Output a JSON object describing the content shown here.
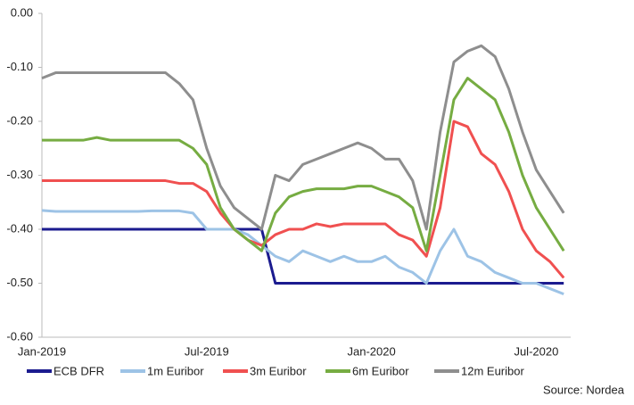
{
  "chart_data": {
    "type": "line",
    "x": [
      "Jan-2019",
      null,
      null,
      null,
      null,
      null,
      null,
      null,
      null,
      null,
      null,
      null,
      "Jul-2019",
      null,
      null,
      null,
      null,
      null,
      null,
      null,
      null,
      null,
      null,
      null,
      "Jan-2020",
      null,
      null,
      null,
      null,
      null,
      null,
      null,
      null,
      null,
      null,
      null,
      "Jul-2020",
      null,
      null
    ],
    "ylim": [
      -0.6,
      0
    ],
    "yticks": [
      {
        "value": 0,
        "label": "0.00"
      },
      {
        "value": -0.1,
        "label": "-0.10"
      },
      {
        "value": -0.2,
        "label": "-0.20"
      },
      {
        "value": -0.3,
        "label": "-0.30"
      },
      {
        "value": -0.4,
        "label": "-0.40"
      },
      {
        "value": -0.5,
        "label": "-0.50"
      },
      {
        "value": -0.6,
        "label": "-0.60"
      }
    ],
    "grid": false,
    "legend": "bottom",
    "source": "Source: Nordea",
    "series": [
      {
        "name": "ECB DFR",
        "color": "#1b1b8f",
        "values": [
          -0.4,
          -0.4,
          -0.4,
          -0.4,
          -0.4,
          -0.4,
          -0.4,
          -0.4,
          -0.4,
          -0.4,
          -0.4,
          -0.4,
          -0.4,
          -0.4,
          -0.4,
          -0.4,
          -0.4,
          -0.5,
          -0.5,
          -0.5,
          -0.5,
          -0.5,
          -0.5,
          -0.5,
          -0.5,
          -0.5,
          -0.5,
          -0.5,
          -0.5,
          -0.5,
          -0.5,
          -0.5,
          -0.5,
          -0.5,
          -0.5,
          -0.5,
          -0.5,
          -0.5,
          -0.5
        ]
      },
      {
        "name": "1m Euribor",
        "color": "#9dc3e6",
        "values": [
          -0.365,
          -0.367,
          -0.367,
          -0.367,
          -0.367,
          -0.367,
          -0.367,
          -0.367,
          -0.366,
          -0.366,
          -0.366,
          -0.37,
          -0.4,
          -0.4,
          -0.4,
          -0.41,
          -0.43,
          -0.45,
          -0.46,
          -0.44,
          -0.45,
          -0.46,
          -0.45,
          -0.46,
          -0.46,
          -0.45,
          -0.47,
          -0.48,
          -0.5,
          -0.44,
          -0.4,
          -0.45,
          -0.46,
          -0.48,
          -0.49,
          -0.5,
          -0.5,
          -0.51,
          -0.52
        ]
      },
      {
        "name": "3m Euribor",
        "color": "#f05050",
        "values": [
          -0.31,
          -0.31,
          -0.31,
          -0.31,
          -0.31,
          -0.31,
          -0.31,
          -0.31,
          -0.31,
          -0.31,
          -0.315,
          -0.315,
          -0.33,
          -0.37,
          -0.4,
          -0.42,
          -0.43,
          -0.41,
          -0.4,
          -0.4,
          -0.39,
          -0.395,
          -0.39,
          -0.39,
          -0.39,
          -0.39,
          -0.41,
          -0.42,
          -0.45,
          -0.36,
          -0.2,
          -0.21,
          -0.26,
          -0.28,
          -0.33,
          -0.4,
          -0.44,
          -0.46,
          -0.49
        ]
      },
      {
        "name": "6m Euribor",
        "color": "#76ac42",
        "values": [
          -0.235,
          -0.235,
          -0.235,
          -0.235,
          -0.23,
          -0.235,
          -0.235,
          -0.235,
          -0.235,
          -0.235,
          -0.235,
          -0.25,
          -0.28,
          -0.36,
          -0.4,
          -0.42,
          -0.44,
          -0.37,
          -0.34,
          -0.33,
          -0.325,
          -0.325,
          -0.325,
          -0.32,
          -0.32,
          -0.33,
          -0.34,
          -0.36,
          -0.44,
          -0.3,
          -0.16,
          -0.12,
          -0.14,
          -0.16,
          -0.22,
          -0.3,
          -0.36,
          -0.4,
          -0.44
        ]
      },
      {
        "name": "12m Euribor",
        "color": "#8e8e8e",
        "values": [
          -0.12,
          -0.11,
          -0.11,
          -0.11,
          -0.11,
          -0.11,
          -0.11,
          -0.11,
          -0.11,
          -0.11,
          -0.13,
          -0.16,
          -0.25,
          -0.32,
          -0.36,
          -0.38,
          -0.4,
          -0.3,
          -0.31,
          -0.28,
          -0.27,
          -0.26,
          -0.25,
          -0.24,
          -0.25,
          -0.27,
          -0.27,
          -0.31,
          -0.4,
          -0.22,
          -0.09,
          -0.07,
          -0.06,
          -0.08,
          -0.14,
          -0.22,
          -0.29,
          -0.33,
          -0.37
        ]
      }
    ]
  }
}
